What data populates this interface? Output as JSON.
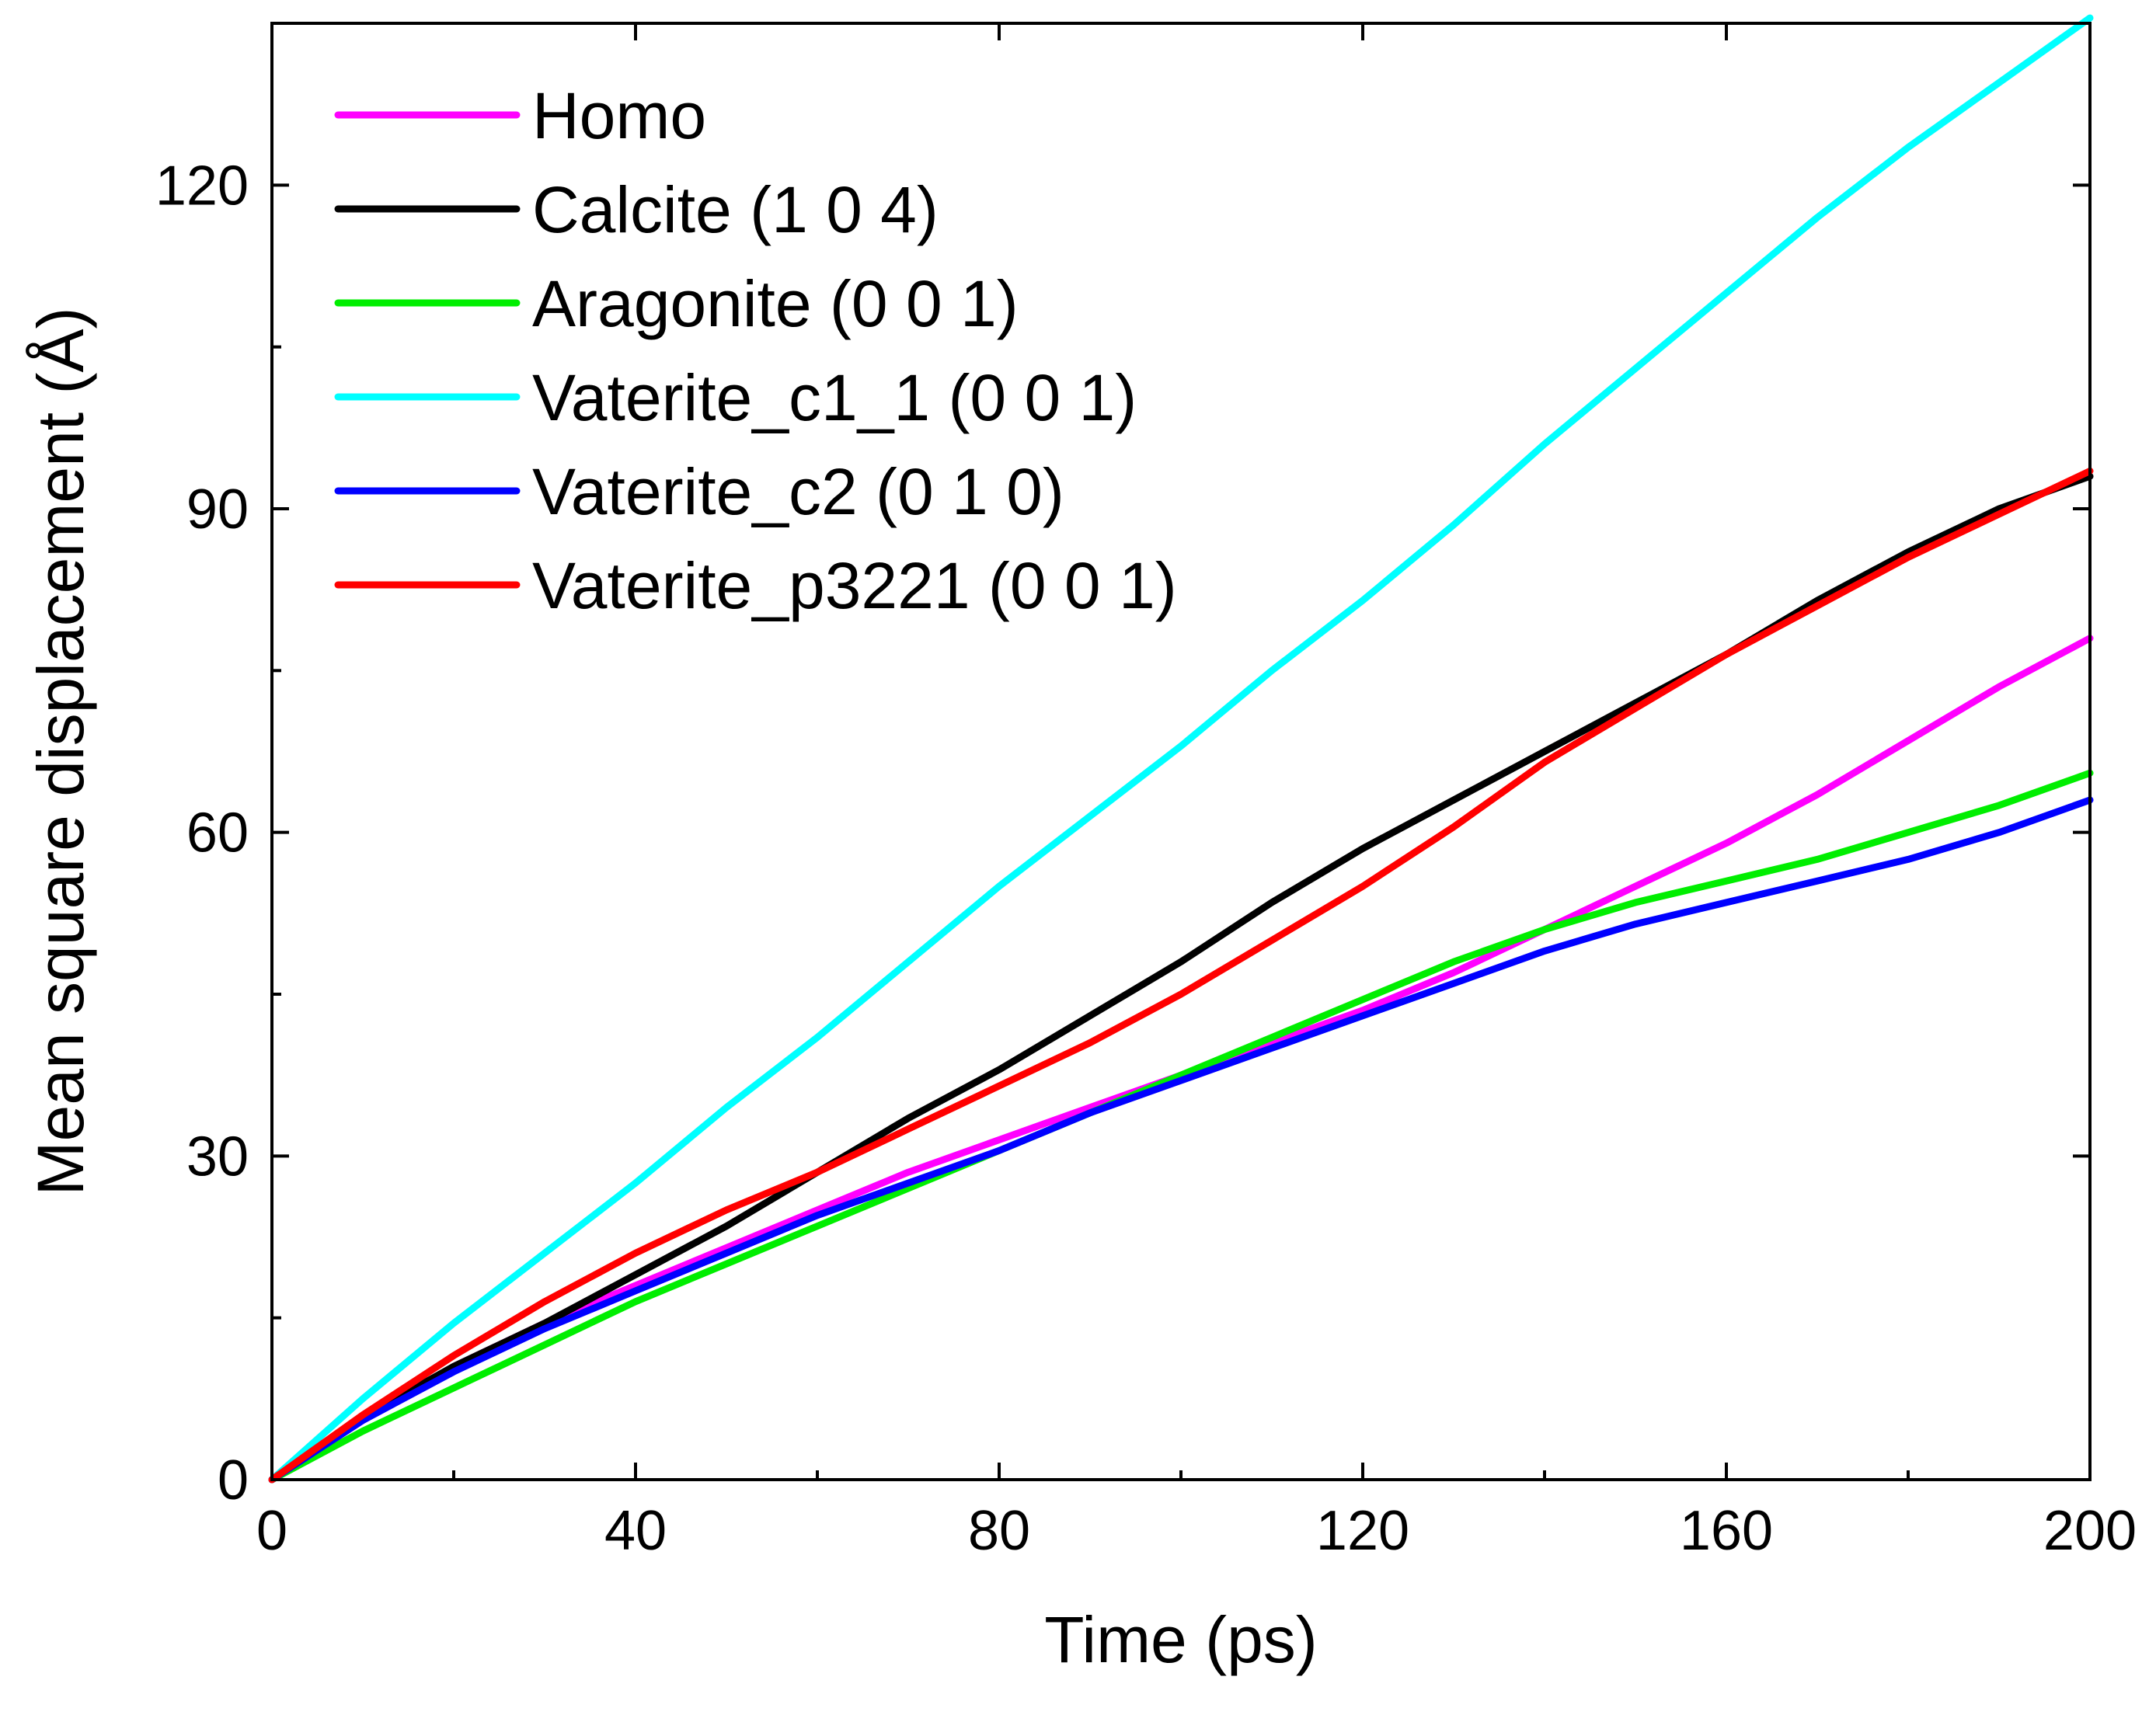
{
  "chart_data": {
    "type": "line",
    "title": "",
    "xlabel": "Time (ps)",
    "ylabel": "Mean square displacement (Å)",
    "xlim": [
      0,
      200
    ],
    "ylim": [
      0,
      135
    ],
    "xticks": [
      0,
      40,
      80,
      120,
      160,
      200
    ],
    "yticks": [
      0,
      30,
      60,
      90,
      120
    ],
    "x_minor_ticks": [
      20,
      60,
      100,
      140,
      180
    ],
    "y_minor_ticks": [
      15,
      45,
      75,
      105
    ],
    "grid": false,
    "legend_position": "top-left",
    "series": [
      {
        "name": "Homo",
        "color": "#ff00ff",
        "x": [
          0,
          10,
          20,
          30,
          40,
          50,
          60,
          70,
          80,
          90,
          100,
          110,
          120,
          130,
          140,
          150,
          160,
          170,
          180,
          190,
          200
        ],
        "y": [
          0,
          5.5,
          10.5,
          14.5,
          18.0,
          21.5,
          25.0,
          28.5,
          31.5,
          34.5,
          37.5,
          40.5,
          43.5,
          47.0,
          51.0,
          55.0,
          59.0,
          63.5,
          68.5,
          73.5,
          78.0
        ]
      },
      {
        "name": "Calcite (1 0 4)",
        "color": "#000000",
        "x": [
          0,
          10,
          20,
          30,
          40,
          50,
          60,
          70,
          80,
          90,
          100,
          110,
          120,
          130,
          140,
          150,
          160,
          170,
          180,
          190,
          200
        ],
        "y": [
          0,
          5.8,
          10.5,
          14.5,
          19.0,
          23.5,
          28.5,
          33.5,
          38.0,
          43.0,
          48.0,
          53.5,
          58.5,
          63.0,
          67.5,
          72.0,
          76.5,
          81.5,
          86.0,
          90.0,
          93.0
        ]
      },
      {
        "name": "Aragonite (0 0 1)",
        "color": "#00ee00",
        "x": [
          0,
          10,
          20,
          30,
          40,
          50,
          60,
          70,
          80,
          90,
          100,
          110,
          120,
          130,
          140,
          150,
          160,
          170,
          180,
          190,
          200
        ],
        "y": [
          0,
          4.5,
          8.5,
          12.5,
          16.5,
          20.0,
          23.5,
          27.0,
          30.5,
          34.0,
          37.5,
          41.0,
          44.5,
          48.0,
          51.0,
          53.5,
          55.5,
          57.5,
          60.0,
          62.5,
          65.5
        ]
      },
      {
        "name": "Vaterite_c1_1 (0 0 1)",
        "color": "#00ffff",
        "x": [
          0,
          10,
          20,
          30,
          40,
          50,
          60,
          70,
          80,
          90,
          100,
          110,
          120,
          130,
          140,
          150,
          160,
          170,
          180,
          190,
          200
        ],
        "y": [
          0,
          7.5,
          14.5,
          21.0,
          27.5,
          34.5,
          41.0,
          48.0,
          55.0,
          61.5,
          68.0,
          75.0,
          81.5,
          88.5,
          96.0,
          103.0,
          110.0,
          117.0,
          123.5,
          129.5,
          135.5
        ]
      },
      {
        "name": "Vaterite_c2 (0 1 0)",
        "color": "#0000ff",
        "x": [
          0,
          10,
          20,
          30,
          40,
          50,
          60,
          70,
          80,
          90,
          100,
          110,
          120,
          130,
          140,
          150,
          160,
          170,
          180,
          190,
          200
        ],
        "y": [
          0,
          5.5,
          10.0,
          14.0,
          17.5,
          21.0,
          24.5,
          27.5,
          30.5,
          34.0,
          37.0,
          40.0,
          43.0,
          46.0,
          49.0,
          51.5,
          53.5,
          55.5,
          57.5,
          60.0,
          63.0
        ]
      },
      {
        "name": "Vaterite_p3221 (0 0 1)",
        "color": "#ff0000",
        "x": [
          0,
          10,
          20,
          30,
          40,
          50,
          60,
          70,
          80,
          90,
          100,
          110,
          120,
          130,
          140,
          150,
          160,
          170,
          180,
          190,
          200
        ],
        "y": [
          0,
          6.0,
          11.5,
          16.5,
          21.0,
          25.0,
          28.5,
          32.5,
          36.5,
          40.5,
          45.0,
          50.0,
          55.0,
          60.5,
          66.5,
          71.5,
          76.5,
          81.0,
          85.5,
          89.5,
          93.5
        ]
      }
    ]
  }
}
